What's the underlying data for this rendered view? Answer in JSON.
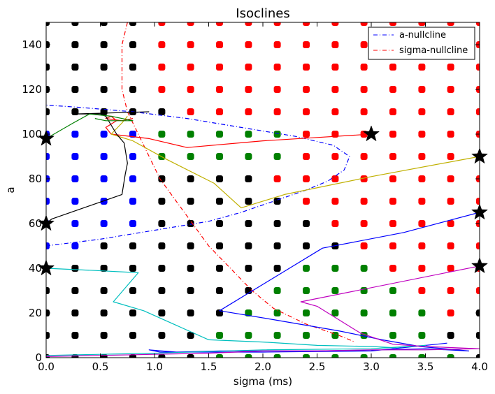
{
  "chart_data": {
    "type": "line",
    "title": "Isoclines",
    "xlabel": "sigma (ms)",
    "ylabel": "a",
    "xlim": [
      0,
      4
    ],
    "ylim": [
      0,
      150
    ],
    "xticks": [
      "0.0",
      "0.5",
      "1.0",
      "1.5",
      "2.0",
      "2.5",
      "3.0",
      "3.5",
      "4.0"
    ],
    "yticks": [
      "0",
      "20",
      "40",
      "60",
      "80",
      "100",
      "120",
      "140"
    ],
    "legend": {
      "position": "top-right",
      "entries": [
        {
          "label": "a-nullcline",
          "color": "#0000ff",
          "style": "dashdot"
        },
        {
          "label": "sigma-nullcline",
          "color": "#ff0000",
          "style": "dashdot"
        }
      ]
    },
    "grid": {
      "x": [
        0.0,
        0.267,
        0.533,
        0.8,
        1.067,
        1.333,
        1.6,
        1.867,
        2.133,
        2.4,
        2.667,
        2.933,
        3.2,
        3.467,
        3.733,
        4.0
      ],
      "y": [
        0,
        10,
        20,
        30,
        40,
        50,
        60,
        70,
        80,
        90,
        100,
        110,
        120,
        130,
        140,
        150
      ],
      "colors": [
        "#000000",
        "#0000ff",
        "#008000",
        "#ff0000"
      ],
      "class_matrix": [
        "0000002222222220",
        "0000002222222200",
        "0000000222222230",
        "0000000022222333",
        "0000000002223333",
        "1100000000033333",
        "1111000000333333",
        "1111000003333333",
        "1111000033333333",
        "1111222223333333",
        "1111222223333333",
        "0000033333333333",
        "0000333333333333",
        "0000333333333333",
        "0000333333333333",
        "0000333333333333"
      ]
    },
    "series": [
      {
        "type": "nullcline",
        "color": "#0000ff",
        "points": [
          [
            0.0,
            50
          ],
          [
            0.5,
            53
          ],
          [
            1.0,
            57
          ],
          [
            1.5,
            61
          ],
          [
            1.8,
            65
          ],
          [
            2.1,
            70
          ],
          [
            2.4,
            75
          ],
          [
            2.6,
            79
          ],
          [
            2.75,
            84
          ],
          [
            2.8,
            90
          ],
          [
            2.65,
            95
          ],
          [
            2.3,
            99
          ],
          [
            1.8,
            103
          ],
          [
            1.3,
            107
          ],
          [
            0.8,
            110
          ],
          [
            0.3,
            112
          ],
          [
            0.0,
            113
          ]
        ]
      },
      {
        "type": "nullcline",
        "color": "#ff0000",
        "points": [
          [
            0.75,
            150
          ],
          [
            0.7,
            140
          ],
          [
            0.7,
            130
          ],
          [
            0.7,
            120
          ],
          [
            0.75,
            110
          ],
          [
            0.85,
            100
          ],
          [
            0.95,
            90
          ],
          [
            1.05,
            80
          ],
          [
            1.2,
            70
          ],
          [
            1.35,
            60
          ],
          [
            1.5,
            50
          ],
          [
            1.7,
            40
          ],
          [
            1.9,
            30
          ],
          [
            2.1,
            22
          ],
          [
            2.4,
            15
          ],
          [
            2.7,
            10
          ],
          [
            2.85,
            7
          ]
        ]
      },
      {
        "type": "trajectory",
        "color": "#ff0000",
        "points": [
          [
            3.0,
            100
          ],
          [
            2.5,
            98.5
          ],
          [
            2.0,
            97
          ],
          [
            1.3,
            94
          ],
          [
            0.95,
            98
          ],
          [
            0.6,
            100
          ],
          [
            0.55,
            103
          ],
          [
            0.65,
            106
          ],
          [
            0.6,
            108
          ],
          [
            0.55,
            107
          ],
          [
            0.7,
            106
          ],
          [
            0.8,
            107
          ]
        ]
      },
      {
        "type": "trajectory",
        "color": "#c0b000",
        "points": [
          [
            4.0,
            90
          ],
          [
            3.0,
            81
          ],
          [
            2.2,
            73
          ],
          [
            1.8,
            67
          ],
          [
            1.55,
            78
          ],
          [
            1.1,
            89
          ],
          [
            0.8,
            97
          ],
          [
            0.6,
            100
          ],
          [
            0.7,
            105
          ],
          [
            0.75,
            108
          ]
        ]
      },
      {
        "type": "trajectory",
        "color": "#000000",
        "points": [
          [
            0.0,
            60
          ],
          [
            0.05,
            62
          ],
          [
            0.7,
            73
          ],
          [
            0.73,
            82
          ],
          [
            0.75,
            87
          ],
          [
            0.72,
            96
          ],
          [
            0.65,
            100
          ],
          [
            0.55,
            108
          ],
          [
            0.5,
            109
          ],
          [
            0.25,
            109
          ],
          [
            0.95,
            110
          ]
        ]
      },
      {
        "type": "trajectory",
        "color": "#008000",
        "points": [
          [
            0.0,
            98
          ],
          [
            0.25,
            105
          ],
          [
            0.4,
            109
          ],
          [
            0.6,
            108
          ],
          [
            0.8,
            106
          ],
          [
            0.55,
            106
          ],
          [
            0.45,
            107
          ]
        ]
      },
      {
        "type": "trajectory",
        "color": "#0000ff",
        "points": [
          [
            4.0,
            65
          ],
          [
            3.3,
            56
          ],
          [
            2.55,
            49
          ],
          [
            1.6,
            21
          ],
          [
            2.1,
            17
          ],
          [
            2.7,
            12
          ],
          [
            3.1,
            8
          ],
          [
            3.45,
            5
          ],
          [
            3.9,
            3
          ],
          [
            3.5,
            4
          ],
          [
            3.1,
            3.5
          ],
          [
            2.5,
            3
          ],
          [
            1.6,
            3
          ],
          [
            1.2,
            2.5
          ],
          [
            0.95,
            3.5
          ],
          [
            1.05,
            2.5
          ],
          [
            2.0,
            2.5
          ],
          [
            3.0,
            3
          ],
          [
            3.7,
            6.5
          ]
        ]
      },
      {
        "type": "trajectory",
        "color": "#00bfbf",
        "points": [
          [
            0.0,
            40
          ],
          [
            0.45,
            39
          ],
          [
            0.85,
            38
          ],
          [
            0.62,
            25
          ],
          [
            0.9,
            21
          ],
          [
            1.5,
            8
          ],
          [
            2.0,
            7
          ],
          [
            2.5,
            5.5
          ],
          [
            3.0,
            5
          ],
          [
            3.2,
            4.5
          ],
          [
            3.5,
            5.5
          ],
          [
            3.0,
            4
          ],
          [
            2.0,
            3.5
          ],
          [
            1.0,
            2
          ],
          [
            0.5,
            1.5
          ],
          [
            0.0,
            1
          ]
        ]
      },
      {
        "type": "trajectory",
        "color": "#bf00bf",
        "points": [
          [
            4.0,
            41
          ],
          [
            2.35,
            25
          ],
          [
            2.5,
            23
          ],
          [
            2.9,
            11
          ],
          [
            3.2,
            6
          ],
          [
            3.5,
            5
          ],
          [
            4.0,
            4
          ],
          [
            3.5,
            3.5
          ],
          [
            3.0,
            3.5
          ],
          [
            2.5,
            3
          ],
          [
            2.0,
            3
          ],
          [
            1.5,
            2
          ],
          [
            1.0,
            1.5
          ],
          [
            0.5,
            1
          ],
          [
            0.0,
            0.5
          ]
        ]
      }
    ],
    "markers": [
      [
        3.0,
        100
      ],
      [
        4.0,
        90
      ],
      [
        4.0,
        65
      ],
      [
        4.0,
        41
      ],
      [
        0.0,
        60
      ],
      [
        0.0,
        98
      ],
      [
        0.0,
        40
      ]
    ]
  }
}
